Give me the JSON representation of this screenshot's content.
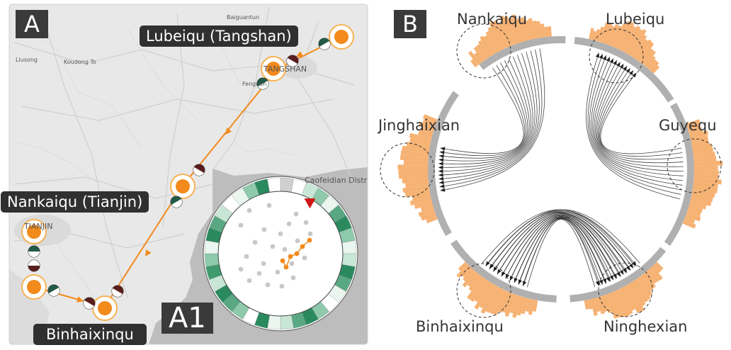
{
  "panel_a": {
    "label": "A",
    "inset_label": "A1",
    "callouts": {
      "lubeiqu": "Lubeiqu (Tangshan)",
      "nankaiqu": "Nankaiqu (Tianjin)",
      "binhaixinqu": "Binhaixinqu"
    },
    "map_labels": [
      {
        "text": "Baiguantun",
        "big": false
      },
      {
        "text": "Liusong",
        "big": false
      },
      {
        "text": "Koudong To",
        "big": false
      },
      {
        "text": "TANGSHAN",
        "big": true
      },
      {
        "text": "Fengnan",
        "big": false
      },
      {
        "text": "Caofeidian Distr",
        "big": true
      },
      {
        "text": "TIANJIN",
        "big": true
      }
    ],
    "colors": {
      "route": "#f28a1c",
      "marker_fill": "#f28a1c",
      "marker_ring": "#f7b253",
      "half_dark": "#5a1e1e",
      "half_green": "#235a47",
      "ocean": "#bcbcbc",
      "land": "#e7e7e7"
    }
  },
  "inset": {
    "ring_colors": [
      "#2a8a5e",
      "#5aa883",
      "#8ec9ab",
      "#c8e6d6",
      "#eaf6ef",
      "#ffffff",
      "#3f9a6e"
    ],
    "highlight_color": "#d01515",
    "dot_color": "#c8c8c8",
    "trajectory_color": "#f28a1c"
  },
  "panel_b": {
    "label": "B",
    "regions": [
      {
        "name": "Nankaiqu"
      },
      {
        "name": "Lubeiqu"
      },
      {
        "name": "Jinghaixian"
      },
      {
        "name": "Guyequ"
      },
      {
        "name": "Binhaixinqu"
      },
      {
        "name": "Ninghexian"
      }
    ],
    "colors": {
      "ring": "#b0b0b0",
      "histogram": "#f5a55b",
      "flow": "#202020",
      "circle_stroke": "#333333"
    }
  }
}
